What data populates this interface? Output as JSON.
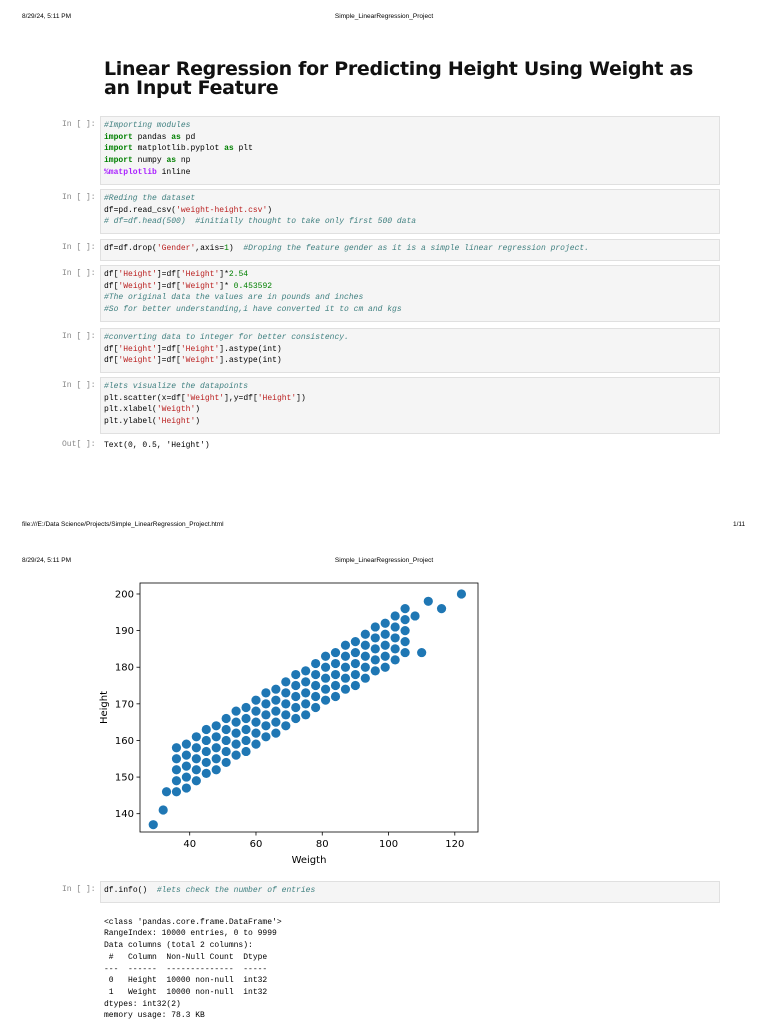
{
  "header": {
    "datetime": "8/29/24, 5:11 PM",
    "doc_title": "Simple_LinearRegression_Project"
  },
  "title": "Linear Regression for Predicting Height Using Weight as an Input Feature",
  "cells": [
    {
      "prompt": "In [ ]:",
      "code": [
        "#Importing modules",
        "import pandas as pd",
        "import matplotlib.pyplot as plt",
        "import numpy as np",
        "%matplotlib inline"
      ]
    },
    {
      "prompt": "In [ ]:",
      "code": [
        "#Reding the dataset",
        "df=pd.read_csv('weight-height.csv')",
        "# df=df.head(500)  #initially thought to take only first 500 data"
      ]
    },
    {
      "prompt": "In [ ]:",
      "code": [
        "df=df.drop('Gender',axis=1)  #Droping the feature gender as it is a simple linear regression project."
      ]
    },
    {
      "prompt": "In [ ]:",
      "code": [
        "df['Height']=df['Height']*2.54",
        "df['Weight']=df['Weight']* 0.453592",
        "#The original data the values are in pounds and inches",
        "#So for better understanding,i have converted it to cm and kgs"
      ]
    },
    {
      "prompt": "In [ ]:",
      "code": [
        "#converting data to integer for better consistency.",
        "df['Height']=df['Height'].astype(int)",
        "df['Weight']=df['Weight'].astype(int)"
      ]
    },
    {
      "prompt": "In [ ]:",
      "code": [
        "#lets visualize the datapoints",
        "plt.scatter(x=df['Weight'],y=df['Height'])",
        "plt.xlabel('Weigth')",
        "plt.ylabel('Height')"
      ]
    }
  ],
  "out": {
    "prompt": "Out[ ]:",
    "text": "Text(0, 0.5, 'Height')"
  },
  "footer": {
    "path": "file:///E:/Data Science/Projects/Simple_LinearRegression_Project.html",
    "page": "1/11"
  },
  "header2": {
    "datetime": "8/29/24, 5:11 PM",
    "doc_title": "Simple_LinearRegression_Project"
  },
  "chart_data": {
    "type": "scatter",
    "x_label": "Weigth",
    "y_label": "Height",
    "color": "#1f77b4",
    "xlim": [
      25,
      127
    ],
    "ylim": [
      135,
      203
    ],
    "xticks": [
      40,
      60,
      80,
      100,
      120
    ],
    "yticks": [
      140,
      150,
      160,
      170,
      180,
      190,
      200
    ],
    "x": [
      36,
      36,
      36,
      36,
      36,
      39,
      39,
      39,
      39,
      39,
      42,
      42,
      42,
      42,
      42,
      45,
      45,
      45,
      45,
      45,
      48,
      48,
      48,
      48,
      48,
      51,
      51,
      51,
      51,
      51,
      54,
      54,
      54,
      54,
      54,
      57,
      57,
      57,
      57,
      57,
      60,
      60,
      60,
      60,
      60,
      63,
      63,
      63,
      63,
      63,
      66,
      66,
      66,
      66,
      66,
      69,
      69,
      69,
      69,
      69,
      72,
      72,
      72,
      72,
      72,
      75,
      75,
      75,
      75,
      75,
      78,
      78,
      78,
      78,
      78,
      81,
      81,
      81,
      81,
      81,
      84,
      84,
      84,
      84,
      84,
      87,
      87,
      87,
      87,
      87,
      90,
      90,
      90,
      90,
      90,
      93,
      93,
      93,
      93,
      93,
      96,
      96,
      96,
      96,
      96,
      99,
      99,
      99,
      99,
      99,
      102,
      102,
      102,
      102,
      102,
      105,
      105,
      105,
      105,
      105,
      29,
      32,
      33,
      122,
      112,
      116,
      108,
      110
    ],
    "values": [
      146,
      149,
      152,
      155,
      158,
      147,
      150,
      153,
      156,
      159,
      149,
      152,
      155,
      158,
      161,
      151,
      154,
      157,
      160,
      163,
      152,
      155,
      158,
      161,
      164,
      154,
      157,
      160,
      163,
      166,
      156,
      159,
      162,
      165,
      168,
      157,
      160,
      163,
      166,
      169,
      159,
      162,
      165,
      168,
      171,
      161,
      164,
      167,
      170,
      173,
      162,
      165,
      168,
      171,
      174,
      164,
      167,
      170,
      173,
      176,
      166,
      169,
      172,
      175,
      178,
      167,
      170,
      173,
      176,
      179,
      169,
      172,
      175,
      178,
      181,
      171,
      174,
      177,
      180,
      183,
      172,
      175,
      178,
      181,
      184,
      174,
      177,
      180,
      183,
      186,
      175,
      178,
      181,
      184,
      187,
      177,
      180,
      183,
      186,
      189,
      179,
      182,
      185,
      188,
      191,
      180,
      183,
      186,
      189,
      192,
      182,
      185,
      188,
      191,
      194,
      184,
      187,
      190,
      193,
      196,
      137,
      141,
      146,
      200,
      198,
      196,
      194,
      184
    ]
  },
  "info_cell": {
    "prompt": "In [ ]:",
    "code": [
      "df.info()  #lets check the number of entries"
    ],
    "output": [
      "<class 'pandas.core.frame.DataFrame'>",
      "RangeIndex: 10000 entries, 0 to 9999",
      "Data columns (total 2 columns):",
      " #   Column  Non-Null Count  Dtype",
      "---  ------  --------------  -----",
      " 0   Height  10000 non-null  int32",
      " 1   Weight  10000 non-null  int32",
      "dtypes: int32(2)",
      "memory usage: 78.3 KB"
    ]
  }
}
